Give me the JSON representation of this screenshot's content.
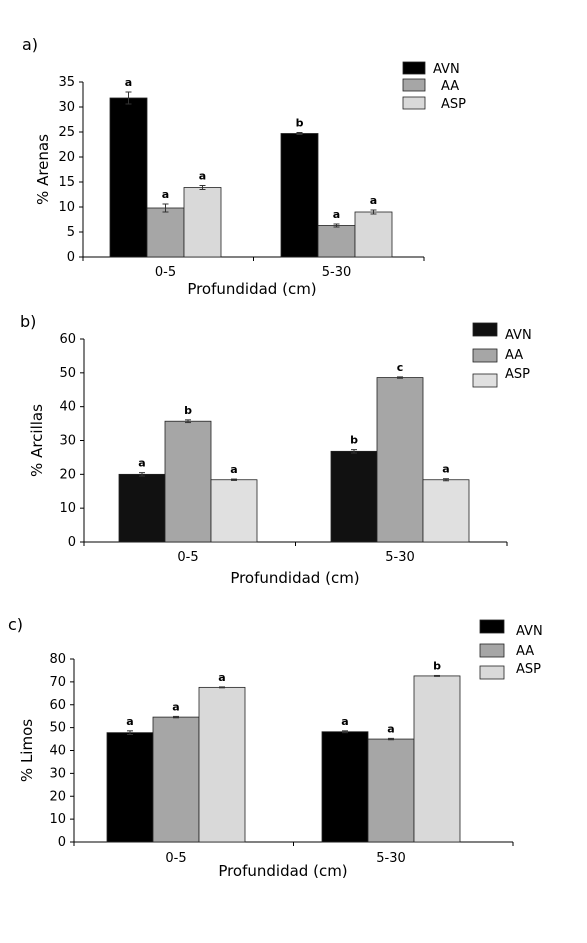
{
  "chart_data": [
    {
      "panel": "a)",
      "type": "bar",
      "categories": [
        "0-5",
        "5-30"
      ],
      "xlabel": "Profundidad (cm)",
      "ylabel": "% Arenas",
      "ylim": [
        0,
        35
      ],
      "yticks": [
        0,
        5,
        10,
        15,
        20,
        25,
        30,
        35
      ],
      "legend_position": "top-right",
      "grid": false,
      "series": [
        {
          "name": "AVN",
          "color": "#000000",
          "values": [
            31.8,
            24.7
          ],
          "errors": [
            1.2,
            0.2
          ],
          "labels": [
            "a",
            "b"
          ]
        },
        {
          "name": "AA",
          "color": "#a6a6a6",
          "values": [
            9.8,
            6.3
          ],
          "errors": [
            0.8,
            0.3
          ],
          "labels": [
            "a",
            "a"
          ]
        },
        {
          "name": "ASP",
          "color": "#d9d9d9",
          "values": [
            13.9,
            9.0
          ],
          "errors": [
            0.4,
            0.4
          ],
          "labels": [
            "a",
            "a"
          ]
        }
      ]
    },
    {
      "panel": "b)",
      "type": "bar",
      "categories": [
        "0-5",
        "5-30"
      ],
      "xlabel": "Profundidad (cm)",
      "ylabel": "% Arcillas",
      "ylim": [
        0,
        60
      ],
      "yticks": [
        0,
        10,
        20,
        30,
        40,
        50,
        60
      ],
      "legend_position": "top-right",
      "grid": false,
      "series": [
        {
          "name": "AVN",
          "color": "#111111",
          "values": [
            20.0,
            26.8
          ],
          "errors": [
            0.5,
            0.5
          ],
          "labels": [
            "a",
            "b"
          ]
        },
        {
          "name": "AA",
          "color": "#a6a6a6",
          "values": [
            35.7,
            48.6
          ],
          "errors": [
            0.4,
            0.2
          ],
          "labels": [
            "b",
            "c"
          ]
        },
        {
          "name": "ASP",
          "color": "#e0e0e0",
          "values": [
            18.4,
            18.4
          ],
          "errors": [
            0.2,
            0.3
          ],
          "labels": [
            "a",
            "a"
          ]
        }
      ]
    },
    {
      "panel": "c)",
      "type": "bar",
      "categories": [
        "0-5",
        "5-30"
      ],
      "xlabel": "Profundidad (cm)",
      "ylabel": "% Limos",
      "ylim": [
        0,
        80
      ],
      "yticks": [
        0,
        10,
        20,
        30,
        40,
        50,
        60,
        70,
        80
      ],
      "legend_position": "top-right",
      "grid": false,
      "series": [
        {
          "name": "AVN",
          "color": "#000000",
          "values": [
            47.8,
            48.2
          ],
          "errors": [
            0.8,
            0.4
          ],
          "labels": [
            "a",
            "a"
          ]
        },
        {
          "name": "AA",
          "color": "#a6a6a6",
          "values": [
            54.6,
            45.0
          ],
          "errors": [
            0.3,
            0.3
          ],
          "labels": [
            "a",
            "a"
          ]
        },
        {
          "name": "ASP",
          "color": "#d9d9d9",
          "values": [
            67.6,
            72.6
          ],
          "errors": [
            0.2,
            0.2
          ],
          "labels": [
            "a",
            "b"
          ]
        }
      ]
    }
  ]
}
